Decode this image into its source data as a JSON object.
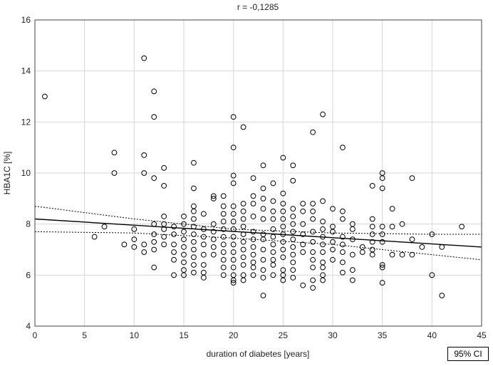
{
  "chart_data": {
    "type": "scatter",
    "title": "r = -0,1285",
    "xlabel": "duration of diabetes [years]",
    "ylabel": "HBA1C [%]",
    "xlim": [
      0,
      45
    ],
    "ylim": [
      4,
      16
    ],
    "x_ticks": [
      0,
      5,
      10,
      15,
      20,
      25,
      30,
      35,
      40,
      45
    ],
    "y_ticks": [
      4,
      6,
      8,
      10,
      12,
      14,
      16
    ],
    "grid": true,
    "legend": "95% CI",
    "fit_line": {
      "x": [
        0,
        45
      ],
      "y": [
        8.2,
        7.1
      ]
    },
    "ci_upper": {
      "x": [
        0,
        10,
        20,
        30,
        40,
        45
      ],
      "y": [
        8.7,
        8.2,
        7.8,
        7.65,
        7.6,
        7.6
      ]
    },
    "ci_lower": {
      "x": [
        0,
        10,
        20,
        30,
        40,
        45
      ],
      "y": [
        7.7,
        7.65,
        7.45,
        7.2,
        6.8,
        6.6
      ]
    },
    "points": [
      [
        1,
        13.0
      ],
      [
        6,
        7.5
      ],
      [
        7,
        7.9
      ],
      [
        8,
        10.8
      ],
      [
        8,
        10.0
      ],
      [
        9,
        7.2
      ],
      [
        10,
        7.8
      ],
      [
        10,
        7.4
      ],
      [
        10,
        7.1
      ],
      [
        11,
        14.5
      ],
      [
        11,
        10.7
      ],
      [
        11,
        10.0
      ],
      [
        11,
        7.2
      ],
      [
        11,
        6.9
      ],
      [
        12,
        13.2
      ],
      [
        12,
        12.2
      ],
      [
        12,
        9.8
      ],
      [
        12,
        8.0
      ],
      [
        12,
        7.6
      ],
      [
        12,
        7.3
      ],
      [
        12,
        7.0
      ],
      [
        12,
        6.3
      ],
      [
        13,
        10.2
      ],
      [
        13,
        9.5
      ],
      [
        13,
        8.3
      ],
      [
        13,
        8.0
      ],
      [
        13,
        7.8
      ],
      [
        13,
        7.5
      ],
      [
        13,
        7.2
      ],
      [
        14,
        7.9
      ],
      [
        14,
        7.6
      ],
      [
        14,
        7.2
      ],
      [
        14,
        6.9
      ],
      [
        14,
        6.6
      ],
      [
        14,
        6.0
      ],
      [
        15,
        8.3
      ],
      [
        15,
        8.0
      ],
      [
        15,
        7.7
      ],
      [
        15,
        7.4
      ],
      [
        15,
        7.1
      ],
      [
        15,
        6.8
      ],
      [
        15,
        6.5
      ],
      [
        15,
        6.2
      ],
      [
        15,
        6.0
      ],
      [
        16,
        10.4
      ],
      [
        16,
        9.4
      ],
      [
        16,
        8.7
      ],
      [
        16,
        8.5
      ],
      [
        16,
        8.2
      ],
      [
        16,
        7.9
      ],
      [
        16,
        7.6
      ],
      [
        16,
        7.3
      ],
      [
        16,
        7.0
      ],
      [
        16,
        6.7
      ],
      [
        16,
        6.4
      ],
      [
        16,
        6.1
      ],
      [
        17,
        8.4
      ],
      [
        17,
        7.8
      ],
      [
        17,
        7.5
      ],
      [
        17,
        7.2
      ],
      [
        17,
        6.8
      ],
      [
        17,
        6.4
      ],
      [
        17,
        6.1
      ],
      [
        17,
        5.9
      ],
      [
        18,
        9.1
      ],
      [
        18,
        9.0
      ],
      [
        18,
        8.0
      ],
      [
        18,
        7.7
      ],
      [
        18,
        7.4
      ],
      [
        18,
        7.1
      ],
      [
        18,
        6.8
      ],
      [
        19,
        9.1
      ],
      [
        19,
        8.7
      ],
      [
        19,
        8.4
      ],
      [
        19,
        8.1
      ],
      [
        19,
        7.8
      ],
      [
        19,
        7.5
      ],
      [
        19,
        7.2
      ],
      [
        19,
        6.9
      ],
      [
        19,
        6.6
      ],
      [
        19,
        6.3
      ],
      [
        19,
        6.0
      ],
      [
        20,
        12.2
      ],
      [
        20,
        11.0
      ],
      [
        20,
        9.9
      ],
      [
        20,
        9.6
      ],
      [
        20,
        8.7
      ],
      [
        20,
        8.4
      ],
      [
        20,
        8.1
      ],
      [
        20,
        7.8
      ],
      [
        20,
        7.5
      ],
      [
        20,
        7.2
      ],
      [
        20,
        6.9
      ],
      [
        20,
        6.6
      ],
      [
        20,
        6.3
      ],
      [
        20,
        6.0
      ],
      [
        20,
        5.8
      ],
      [
        20,
        5.7
      ],
      [
        21,
        11.8
      ],
      [
        21,
        8.8
      ],
      [
        21,
        8.5
      ],
      [
        21,
        8.2
      ],
      [
        21,
        7.9
      ],
      [
        21,
        7.6
      ],
      [
        21,
        7.3
      ],
      [
        21,
        7.0
      ],
      [
        21,
        6.7
      ],
      [
        21,
        6.4
      ],
      [
        21,
        6.0
      ],
      [
        21,
        5.8
      ],
      [
        22,
        9.8
      ],
      [
        22,
        9.1
      ],
      [
        22,
        8.8
      ],
      [
        22,
        8.3
      ],
      [
        22,
        7.7
      ],
      [
        22,
        7.4
      ],
      [
        22,
        7.1
      ],
      [
        22,
        6.8
      ],
      [
        22,
        6.5
      ],
      [
        22,
        6.3
      ],
      [
        22,
        6.0
      ],
      [
        23,
        10.3
      ],
      [
        23,
        9.4
      ],
      [
        23,
        9.0
      ],
      [
        23,
        8.6
      ],
      [
        23,
        8.2
      ],
      [
        23,
        7.6
      ],
      [
        23,
        7.4
      ],
      [
        23,
        7.0
      ],
      [
        23,
        6.6
      ],
      [
        23,
        6.2
      ],
      [
        23,
        5.9
      ],
      [
        23,
        5.2
      ],
      [
        24,
        9.6
      ],
      [
        24,
        8.9
      ],
      [
        24,
        8.5
      ],
      [
        24,
        8.2
      ],
      [
        24,
        7.8
      ],
      [
        24,
        7.5
      ],
      [
        24,
        7.2
      ],
      [
        24,
        6.9
      ],
      [
        24,
        6.6
      ],
      [
        24,
        6.4
      ],
      [
        24,
        6.0
      ],
      [
        25,
        10.6
      ],
      [
        25,
        9.2
      ],
      [
        25,
        8.8
      ],
      [
        25,
        8.5
      ],
      [
        25,
        8.2
      ],
      [
        25,
        7.9
      ],
      [
        25,
        7.6
      ],
      [
        25,
        7.3
      ],
      [
        25,
        7.0
      ],
      [
        25,
        6.7
      ],
      [
        25,
        6.2
      ],
      [
        25,
        6.0
      ],
      [
        25,
        5.8
      ],
      [
        26,
        10.3
      ],
      [
        26,
        9.7
      ],
      [
        26,
        8.6
      ],
      [
        26,
        8.3
      ],
      [
        26,
        8.0
      ],
      [
        26,
        7.7
      ],
      [
        26,
        7.4
      ],
      [
        26,
        7.1
      ],
      [
        26,
        6.8
      ],
      [
        26,
        6.5
      ],
      [
        26,
        6.2
      ],
      [
        26,
        5.9
      ],
      [
        27,
        8.8
      ],
      [
        27,
        8.5
      ],
      [
        27,
        8.0
      ],
      [
        27,
        7.6
      ],
      [
        27,
        7.2
      ],
      [
        27,
        6.9
      ],
      [
        27,
        5.6
      ],
      [
        28,
        11.6
      ],
      [
        28,
        8.8
      ],
      [
        28,
        8.5
      ],
      [
        28,
        8.2
      ],
      [
        28,
        7.7
      ],
      [
        28,
        7.3
      ],
      [
        28,
        6.9
      ],
      [
        28,
        6.6
      ],
      [
        28,
        6.3
      ],
      [
        28,
        5.8
      ],
      [
        28,
        5.5
      ],
      [
        29,
        12.3
      ],
      [
        29,
        8.9
      ],
      [
        29,
        8.1
      ],
      [
        29,
        7.8
      ],
      [
        29,
        7.5
      ],
      [
        29,
        7.2
      ],
      [
        29,
        6.9
      ],
      [
        29,
        6.5
      ],
      [
        29,
        6.3
      ],
      [
        29,
        6.0
      ],
      [
        29,
        5.8
      ],
      [
        30,
        8.6
      ],
      [
        30,
        7.9
      ],
      [
        30,
        7.7
      ],
      [
        30,
        7.3
      ],
      [
        30,
        7.0
      ],
      [
        30,
        6.6
      ],
      [
        31,
        11.0
      ],
      [
        31,
        8.5
      ],
      [
        31,
        8.2
      ],
      [
        31,
        7.5
      ],
      [
        31,
        7.2
      ],
      [
        31,
        6.9
      ],
      [
        31,
        6.5
      ],
      [
        31,
        6.1
      ],
      [
        32,
        8.0
      ],
      [
        32,
        7.8
      ],
      [
        32,
        7.4
      ],
      [
        32,
        6.8
      ],
      [
        32,
        6.2
      ],
      [
        32,
        5.8
      ],
      [
        33,
        7.1
      ],
      [
        33,
        6.9
      ],
      [
        34,
        9.5
      ],
      [
        34,
        8.2
      ],
      [
        34,
        7.9
      ],
      [
        34,
        7.6
      ],
      [
        34,
        7.3
      ],
      [
        34,
        7.0
      ],
      [
        34,
        6.8
      ],
      [
        35,
        10.0
      ],
      [
        35,
        9.8
      ],
      [
        35,
        9.4
      ],
      [
        35,
        7.9
      ],
      [
        35,
        7.6
      ],
      [
        35,
        7.3
      ],
      [
        35,
        6.4
      ],
      [
        35,
        6.3
      ],
      [
        35,
        5.7
      ],
      [
        36,
        8.6
      ],
      [
        36,
        7.9
      ],
      [
        36,
        6.8
      ],
      [
        37,
        8.0
      ],
      [
        37,
        6.8
      ],
      [
        38,
        9.8
      ],
      [
        38,
        7.4
      ],
      [
        38,
        6.8
      ],
      [
        39,
        7.1
      ],
      [
        40,
        7.6
      ],
      [
        40,
        6.0
      ],
      [
        41,
        7.1
      ],
      [
        41,
        5.2
      ],
      [
        43,
        7.9
      ]
    ]
  }
}
